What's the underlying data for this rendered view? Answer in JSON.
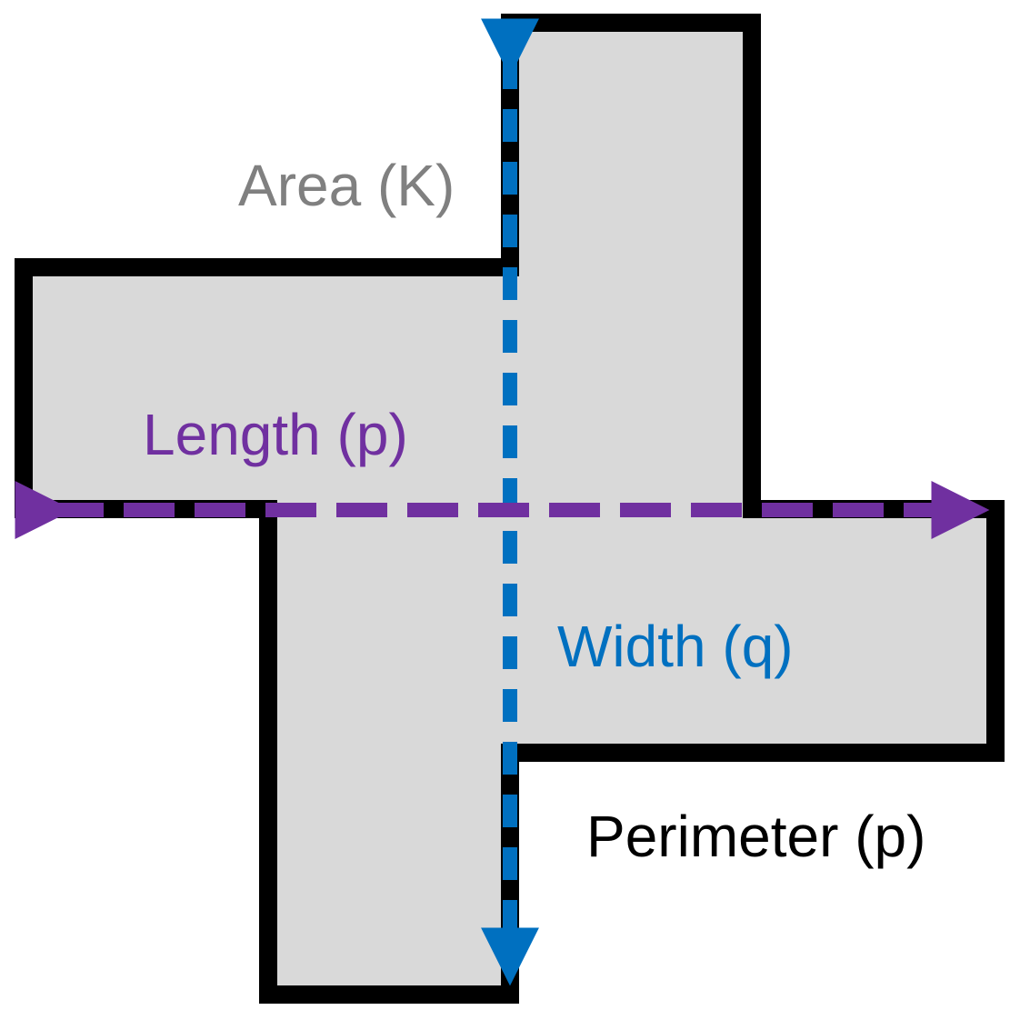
{
  "labels": {
    "area": "Area (K)",
    "length": "Length (p)",
    "width": "Width (q)",
    "perimeter": "Perimeter (p)"
  },
  "colors": {
    "shape_fill": "#d9d9d9",
    "outline": "#000000",
    "area_text": "#808080",
    "length": "#7030a0",
    "width": "#0070c0",
    "perimeter_text": "#000000"
  }
}
